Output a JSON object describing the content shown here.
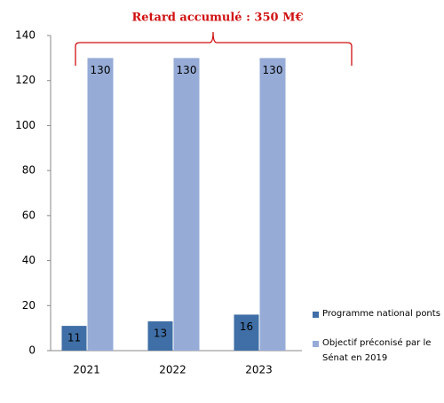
{
  "chart_data": {
    "type": "bar",
    "annotation": "Retard  accumulé  : 350 M€",
    "categories": [
      "2021",
      "2022",
      "2023"
    ],
    "series": [
      {
        "name": "Programme national ponts",
        "color": "#3f6fa6",
        "values": [
          11,
          13,
          16
        ]
      },
      {
        "name": "Objectif préconisé par le Sénat en 2019",
        "color": "#96abd6",
        "values": [
          130,
          130,
          130
        ]
      }
    ],
    "ylim": [
      0,
      140
    ],
    "yticks": [
      0,
      20,
      40,
      60,
      80,
      100,
      120,
      140
    ],
    "grid": false,
    "legend": "lower right"
  }
}
